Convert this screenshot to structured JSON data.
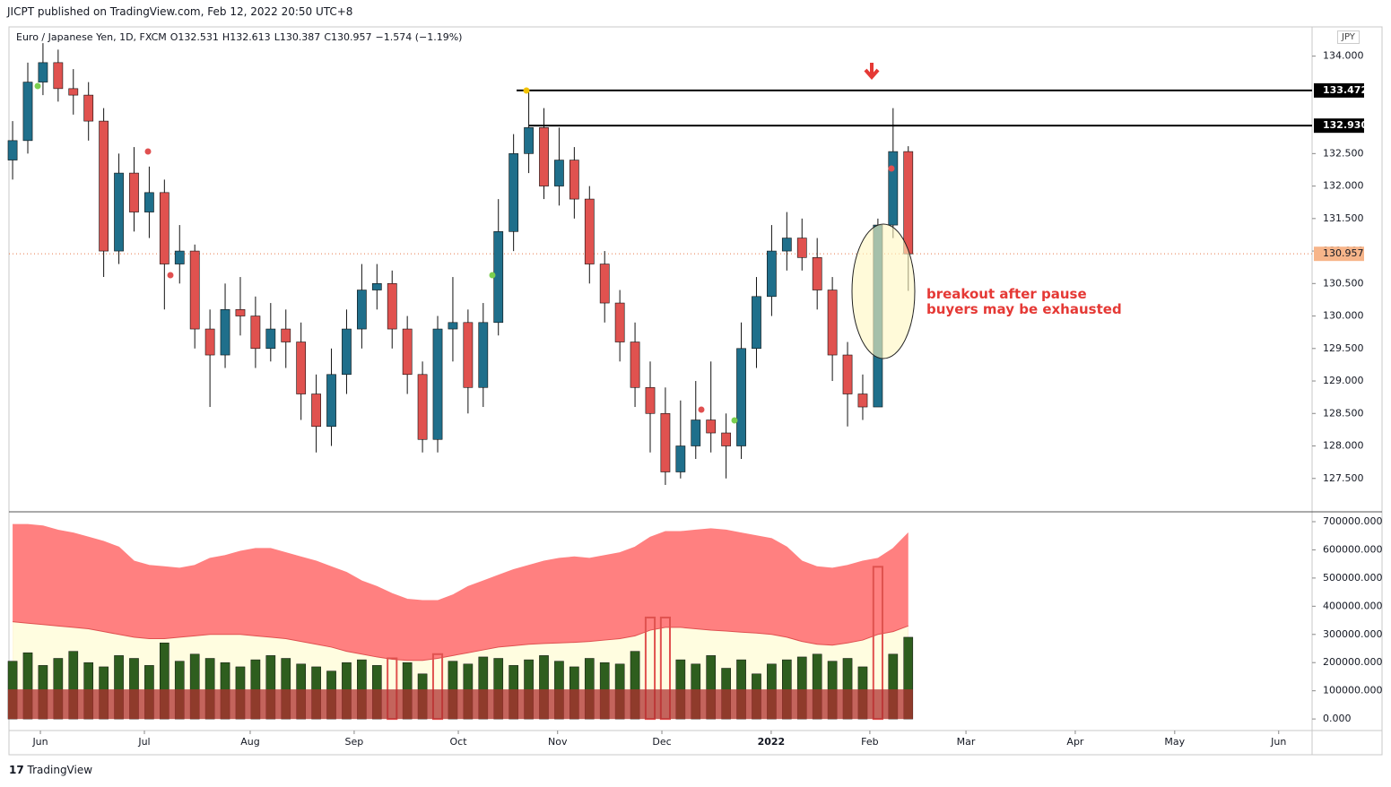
{
  "header": "JICPT published on TradingView.com, Feb 12, 2022 20:50 UTC+8",
  "symbol": "Euro / Japanese Yen, 1D, FXCM",
  "ohlc": [
    "O132.531",
    "H132.613",
    "L130.387",
    "C130.957",
    "−1.574 (−1.19%)"
  ],
  "currency_button": "JPY",
  "annotation": [
    "breakout after pause",
    "buyers may be exhausted"
  ],
  "footer": "TradingView",
  "chart_data": [
    {
      "type": "candlestick",
      "up_color": "#1f6f8b",
      "down_color": "#e0524f",
      "open": [
        132.4,
        132.7,
        133.6,
        133.9,
        133.5,
        133.4,
        133.0,
        131.0,
        132.2,
        131.6,
        131.9,
        130.8,
        131.0,
        129.8,
        129.4,
        130.1,
        130.0,
        129.5,
        129.8,
        129.6,
        128.8,
        128.3,
        129.1,
        129.8,
        130.4,
        130.5,
        129.8,
        129.1,
        128.1,
        129.8,
        129.9,
        128.9,
        129.9,
        131.3,
        132.5,
        132.9,
        132.0,
        132.4,
        131.8,
        130.8,
        130.2,
        129.6,
        128.9,
        128.5,
        127.6,
        128.0,
        128.4,
        128.2,
        128.0,
        129.5,
        130.3,
        131.0,
        131.2,
        130.9,
        130.4,
        129.4,
        128.8,
        128.6,
        131.4,
        132.531
      ],
      "high": [
        133.0,
        133.9,
        134.2,
        134.1,
        133.8,
        133.6,
        133.2,
        132.5,
        132.6,
        132.3,
        132.1,
        131.4,
        131.1,
        130.1,
        130.5,
        130.6,
        130.3,
        130.2,
        130.1,
        129.9,
        129.1,
        129.5,
        130.1,
        130.8,
        130.8,
        130.7,
        130.0,
        129.3,
        130.0,
        130.6,
        130.1,
        130.2,
        131.8,
        132.8,
        133.472,
        133.2,
        132.9,
        132.6,
        132.0,
        131.0,
        130.4,
        129.9,
        129.3,
        128.9,
        128.7,
        129.0,
        129.3,
        128.5,
        129.9,
        130.6,
        131.4,
        131.6,
        131.5,
        131.2,
        130.6,
        129.6,
        129.1,
        131.5,
        133.2,
        132.613
      ],
      "low": [
        132.1,
        132.5,
        133.4,
        133.3,
        133.1,
        132.7,
        130.6,
        130.8,
        131.3,
        131.2,
        130.1,
        130.5,
        129.5,
        128.6,
        129.2,
        129.7,
        129.2,
        129.3,
        129.2,
        128.4,
        127.9,
        128.0,
        128.8,
        129.5,
        130.1,
        129.5,
        128.8,
        127.9,
        127.9,
        129.3,
        128.5,
        128.6,
        129.7,
        131.0,
        132.2,
        131.8,
        131.7,
        131.5,
        130.5,
        129.9,
        129.3,
        128.6,
        127.9,
        127.4,
        127.5,
        127.8,
        127.9,
        127.5,
        127.8,
        129.2,
        130.0,
        130.7,
        130.7,
        130.1,
        129.0,
        128.3,
        128.4,
        128.6,
        131.2,
        130.387
      ],
      "close": [
        132.7,
        133.6,
        133.9,
        133.5,
        133.4,
        133.0,
        131.0,
        132.2,
        131.6,
        131.9,
        130.8,
        131.0,
        129.8,
        129.4,
        130.1,
        130.0,
        129.5,
        129.8,
        129.6,
        128.8,
        128.3,
        129.1,
        129.8,
        130.4,
        130.5,
        129.8,
        129.1,
        128.1,
        129.8,
        129.9,
        128.9,
        129.9,
        131.3,
        132.5,
        132.9,
        132.0,
        132.4,
        131.8,
        130.8,
        130.2,
        129.6,
        128.9,
        128.5,
        127.6,
        128.0,
        128.4,
        128.2,
        128.0,
        129.5,
        130.3,
        131.0,
        131.2,
        130.9,
        130.4,
        129.4,
        128.8,
        128.6,
        131.4,
        132.531,
        130.957
      ],
      "ylim": [
        127.0,
        134.45
      ],
      "yticks": [
        {
          "value": 127.5,
          "label": "127.500"
        },
        {
          "value": 128,
          "label": "128.000"
        },
        {
          "value": 128.5,
          "label": "128.500"
        },
        {
          "value": 129,
          "label": "129.000"
        },
        {
          "value": 129.5,
          "label": "129.500"
        },
        {
          "value": 130,
          "label": "130.000"
        },
        {
          "value": 130.5,
          "label": "130.500"
        },
        {
          "value": 131,
          "label": "131.000"
        },
        {
          "value": 131.5,
          "label": "131.500"
        },
        {
          "value": 132,
          "label": "132.000"
        },
        {
          "value": 132.5,
          "label": "132.500"
        },
        {
          "value": 134,
          "label": "134.000"
        }
      ],
      "levels": [
        {
          "value": 133.472,
          "label": "133.472"
        },
        {
          "value": 132.93,
          "label": "132.930"
        }
      ],
      "last_price": {
        "value": 130.957,
        "label": "130.957"
      },
      "xlim": [
        -0.24,
        85.6
      ],
      "xticks": [
        {
          "value": 1.83,
          "label": "Jun"
        },
        {
          "value": 8.68,
          "label": "Jul"
        },
        {
          "value": 15.65,
          "label": "Aug"
        },
        {
          "value": 22.5,
          "label": "Sep"
        },
        {
          "value": 29.36,
          "label": "Oct"
        },
        {
          "value": 35.9,
          "label": "Nov"
        },
        {
          "value": 42.77,
          "label": "Dec"
        },
        {
          "value": 49.97,
          "label": "2022"
        },
        {
          "value": 56.47,
          "label": "Feb"
        },
        {
          "value": 62.8,
          "label": "Mar"
        },
        {
          "value": 70.0,
          "label": "Apr"
        },
        {
          "value": 76.55,
          "label": "May"
        },
        {
          "value": 83.4,
          "label": "Jun"
        }
      ]
    },
    {
      "type": "bar",
      "up_color": "#2e5e1e",
      "hot_color": "#e0524f",
      "band_color": "#ff8080",
      "low_band_color": "#fffde0",
      "base_color": "#b03030",
      "values": [
        205000,
        235000,
        190000,
        215000,
        240000,
        200000,
        185000,
        225000,
        215000,
        190000,
        270000,
        205000,
        230000,
        215000,
        200000,
        185000,
        210000,
        225000,
        215000,
        195000,
        185000,
        170000,
        200000,
        210000,
        190000,
        215000,
        200000,
        160000,
        230000,
        205000,
        195000,
        220000,
        215000,
        190000,
        210000,
        225000,
        205000,
        185000,
        215000,
        200000,
        195000,
        240000,
        360000,
        360000,
        210000,
        195000,
        225000,
        180000,
        210000,
        160000,
        195000,
        210000,
        220000,
        230000,
        205000,
        215000,
        185000,
        540000,
        230000,
        290000
      ],
      "upper_band": [
        690000,
        690000,
        685000,
        670000,
        660000,
        645000,
        630000,
        610000,
        560000,
        545000,
        540000,
        535000,
        545000,
        570000,
        580000,
        595000,
        605000,
        605000,
        590000,
        575000,
        560000,
        540000,
        520000,
        490000,
        470000,
        445000,
        425000,
        420000,
        420000,
        440000,
        470000,
        490000,
        510000,
        530000,
        545000,
        560000,
        570000,
        575000,
        570000,
        580000,
        590000,
        610000,
        645000,
        665000,
        665000,
        670000,
        675000,
        670000,
        660000,
        650000,
        640000,
        610000,
        560000,
        540000,
        535000,
        545000,
        560000,
        570000,
        605000,
        660000
      ],
      "lower_band": [
        345000,
        340000,
        335000,
        330000,
        325000,
        320000,
        310000,
        300000,
        290000,
        285000,
        285000,
        290000,
        295000,
        300000,
        300000,
        300000,
        295000,
        290000,
        285000,
        275000,
        265000,
        255000,
        240000,
        230000,
        220000,
        212000,
        208000,
        208000,
        215000,
        225000,
        235000,
        245000,
        255000,
        260000,
        265000,
        268000,
        270000,
        272000,
        275000,
        280000,
        285000,
        295000,
        315000,
        325000,
        325000,
        320000,
        315000,
        312000,
        308000,
        305000,
        300000,
        290000,
        275000,
        265000,
        262000,
        270000,
        280000,
        300000,
        310000,
        330000
      ],
      "base": 105000,
      "ylim": [
        -41000,
        731800
      ],
      "yticks": [
        {
          "value": 0,
          "label": "0.000"
        },
        {
          "value": 100000,
          "label": "100000.000"
        },
        {
          "value": 200000,
          "label": "200000.000"
        },
        {
          "value": 300000,
          "label": "300000.000"
        },
        {
          "value": 400000,
          "label": "400000.000"
        },
        {
          "value": 500000,
          "label": "500000.000"
        },
        {
          "value": 600000,
          "label": "600000.000"
        },
        {
          "value": 700000,
          "label": "700000.000"
        }
      ]
    }
  ]
}
